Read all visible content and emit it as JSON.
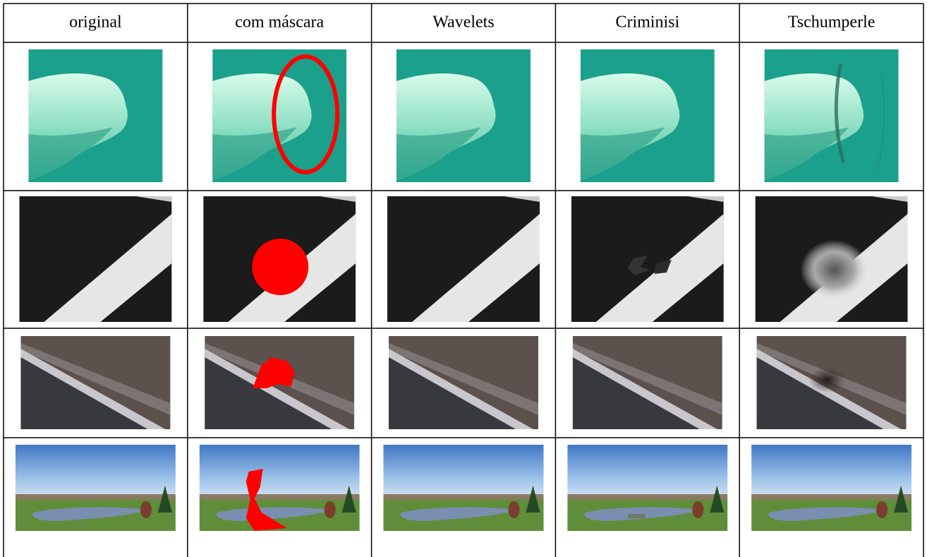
{
  "table": {
    "header": [
      "original",
      "com máscara",
      "Wavelets",
      "Criminisi",
      "Tschumperle"
    ]
  }
}
